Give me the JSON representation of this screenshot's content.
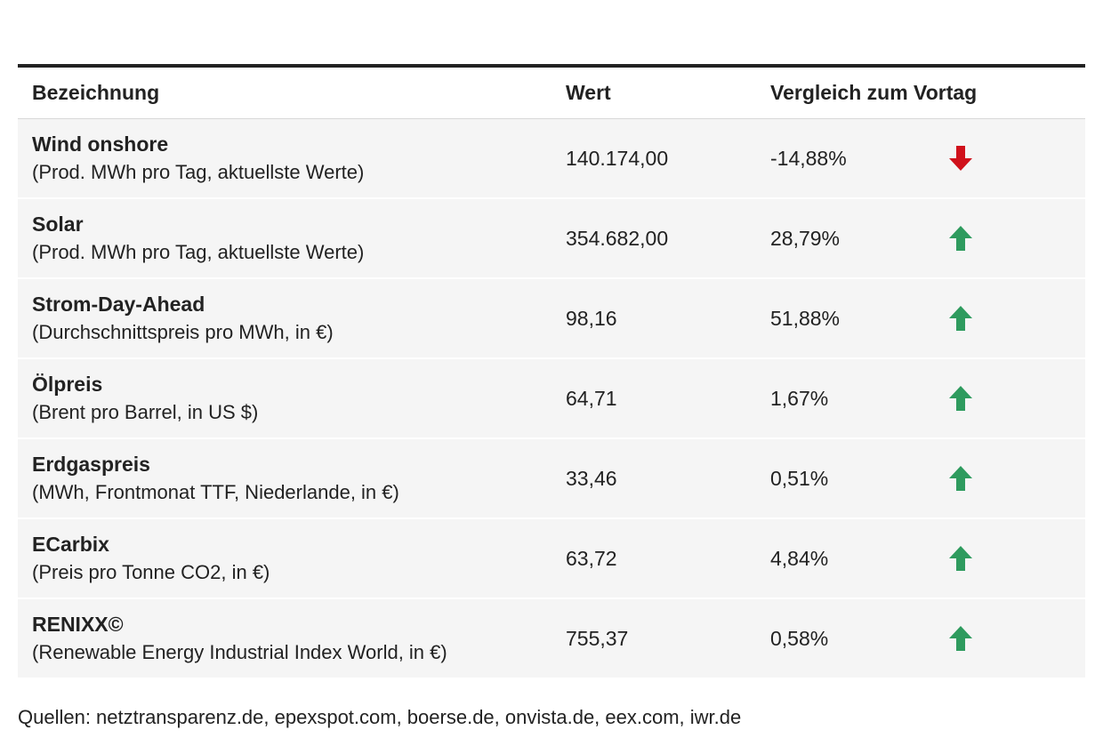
{
  "table": {
    "headers": {
      "name": "Bezeichnung",
      "value": "Wert",
      "change": "Vergleich zum Vortag"
    },
    "rows": [
      {
        "title": "Wind onshore",
        "subtitle": "(Prod. MWh pro Tag, aktuellste Werte)",
        "value": "140.174,00",
        "change": "-14,88%",
        "direction": "down"
      },
      {
        "title": "Solar",
        "subtitle": "(Prod. MWh pro Tag, aktuellste Werte)",
        "value": "354.682,00",
        "change": "28,79%",
        "direction": "up"
      },
      {
        "title": "Strom-Day-Ahead",
        "subtitle": "(Durchschnittspreis pro MWh, in €)",
        "value": "98,16",
        "change": "51,88%",
        "direction": "up"
      },
      {
        "title": "Ölpreis",
        "subtitle": "(Brent pro Barrel, in US $)",
        "value": "64,71",
        "change": "1,67%",
        "direction": "up"
      },
      {
        "title": "Erdgaspreis",
        "subtitle": "(MWh, Frontmonat TTF, Niederlande, in €)",
        "value": "33,46",
        "change": "0,51%",
        "direction": "up"
      },
      {
        "title": "ECarbix",
        "subtitle": "(Preis pro Tonne CO2, in €)",
        "value": "63,72",
        "change": "4,84%",
        "direction": "up"
      },
      {
        "title": "RENIXX©",
        "subtitle": "(Renewable Energy Industrial Index World, in €)",
        "value": "755,37",
        "change": "0,58%",
        "direction": "up"
      }
    ]
  },
  "colors": {
    "up": "#2e9b5e",
    "down": "#d0111b"
  },
  "icons": {
    "up": "arrow-up-icon",
    "down": "arrow-down-icon"
  },
  "source": "Quellen: netztransparenz.de, epexspot.com, boerse.de, onvista.de, eex.com, iwr.de"
}
